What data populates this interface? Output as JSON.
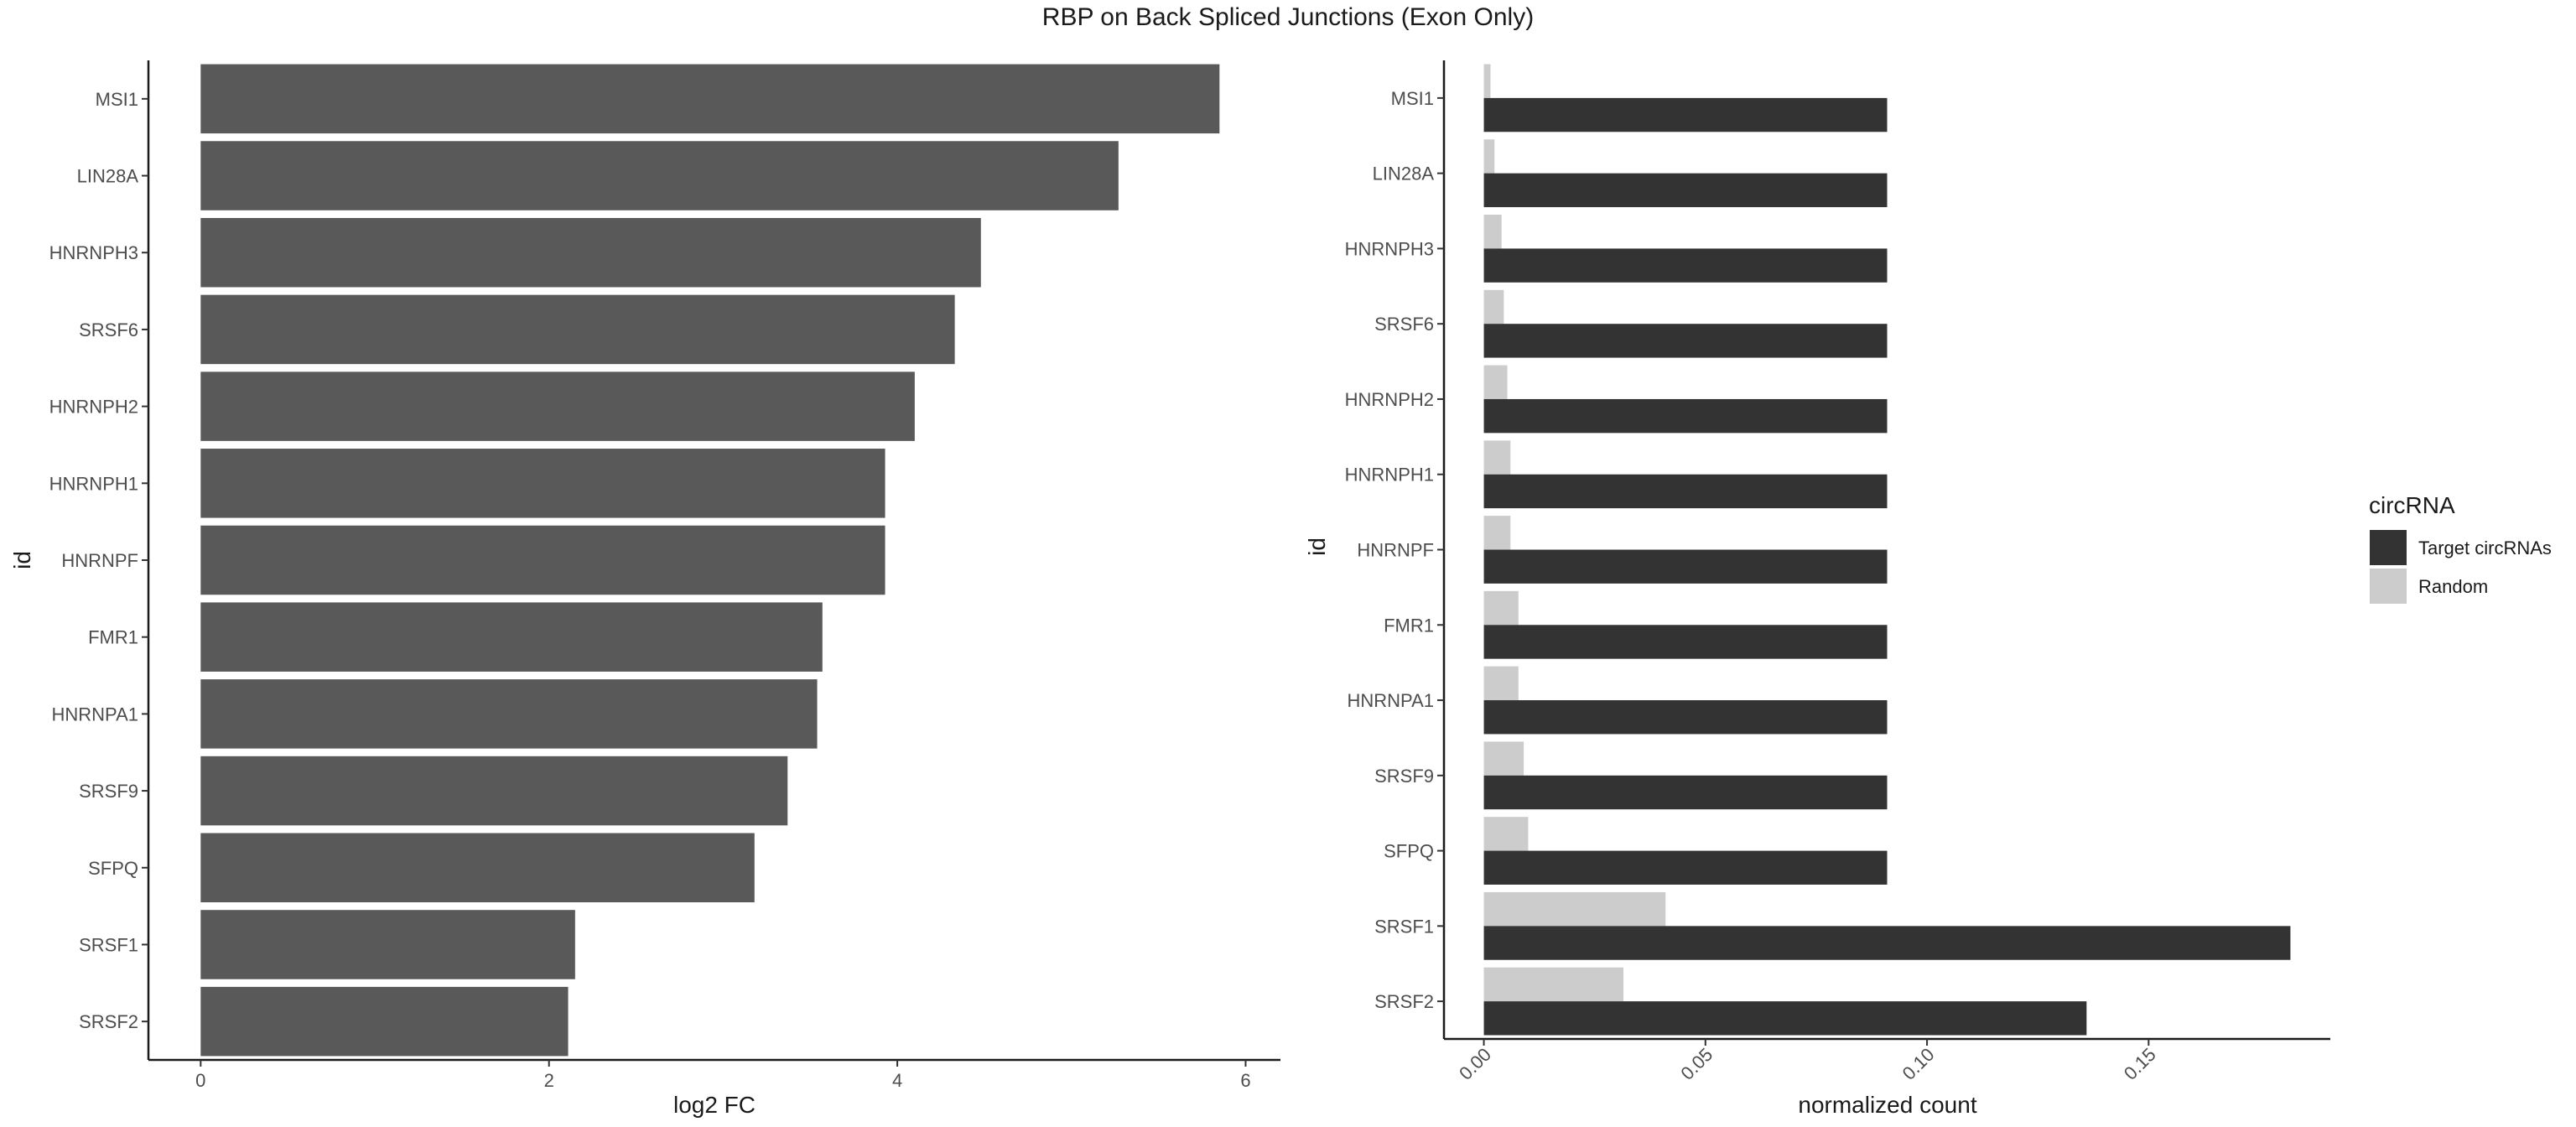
{
  "title": "RBP on Back Spliced Junctions (Exon Only)",
  "chart_data": [
    {
      "type": "bar",
      "orientation": "horizontal",
      "categories": [
        "MSI1",
        "LIN28A",
        "HNRNPH3",
        "SRSF6",
        "HNRNPH2",
        "HNRNPH1",
        "HNRNPF",
        "FMR1",
        "HNRNPA1",
        "SRSF9",
        "SFPQ",
        "SRSF1",
        "SRSF2"
      ],
      "values": [
        5.85,
        5.27,
        4.48,
        4.33,
        4.1,
        3.93,
        3.93,
        3.57,
        3.54,
        3.37,
        3.18,
        2.15,
        2.11
      ],
      "xlabel": "log2 FC",
      "ylabel": "id",
      "xlim": [
        -0.3,
        6.2
      ],
      "xticks": [
        "0",
        "2",
        "4",
        "6"
      ],
      "grid": false,
      "color": "#595959"
    },
    {
      "type": "bar",
      "orientation": "horizontal",
      "grouped": true,
      "categories": [
        "MSI1",
        "LIN28A",
        "HNRNPH3",
        "SRSF6",
        "HNRNPH2",
        "HNRNPH1",
        "HNRNPF",
        "FMR1",
        "HNRNPA1",
        "SRSF9",
        "SFPQ",
        "SRSF1",
        "SRSF2"
      ],
      "series": [
        {
          "name": "Target circRNAs",
          "color": "#333333",
          "values": [
            0.091,
            0.091,
            0.091,
            0.091,
            0.091,
            0.091,
            0.091,
            0.091,
            0.091,
            0.091,
            0.091,
            0.182,
            0.136
          ]
        },
        {
          "name": "Random",
          "color": "#cccccc",
          "values": [
            0.0015,
            0.0024,
            0.004,
            0.0045,
            0.0053,
            0.006,
            0.006,
            0.0078,
            0.0078,
            0.009,
            0.01,
            0.041,
            0.0315
          ]
        }
      ],
      "xlabel": "normalized count",
      "ylabel": "id",
      "xlim": [
        -0.009,
        0.191
      ],
      "xticks": [
        "0.00",
        "0.05",
        "0.10",
        "0.15"
      ],
      "xtick_rotation": 45,
      "legend_title": "circRNA",
      "legend_position": "right",
      "grid": false
    }
  ]
}
